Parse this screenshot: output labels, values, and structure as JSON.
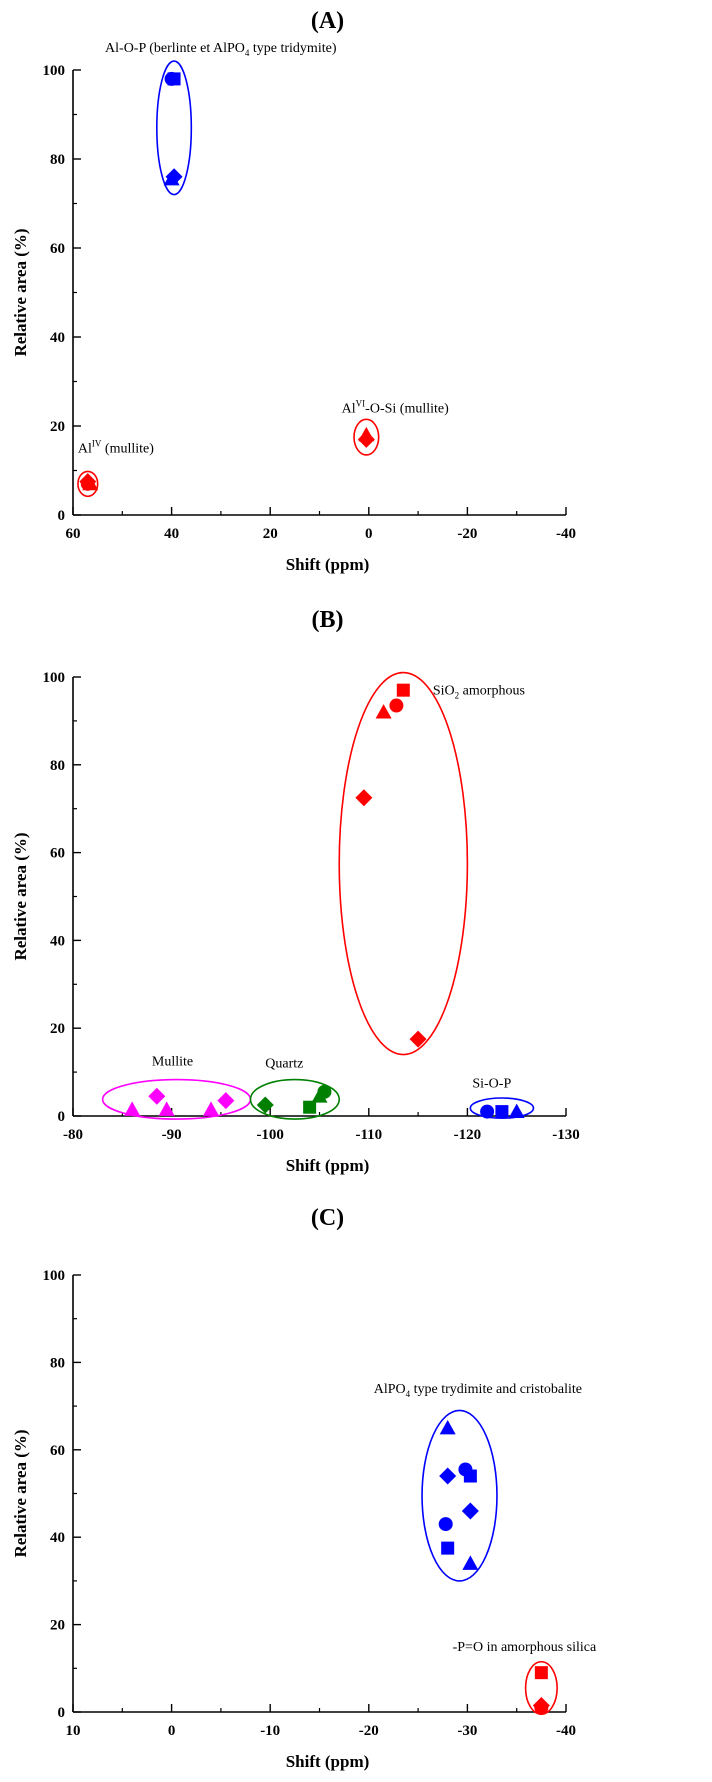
{
  "chart_data": [
    {
      "type": "scatter",
      "title": "(A)",
      "xlabel": "Shift (ppm)",
      "ylabel": "Relative area (%)",
      "xlim": [
        60,
        -40
      ],
      "ylim": [
        0,
        100
      ],
      "xticks": [
        "60",
        "40",
        "20",
        "0",
        "-20",
        "-40"
      ],
      "yticks": [
        "0",
        "20",
        "40",
        "60",
        "80",
        "100"
      ],
      "points": [
        {
          "x": 39.5,
          "y": 98,
          "shape": "square",
          "color": "#0000ff"
        },
        {
          "x": 40.0,
          "y": 98,
          "shape": "circle",
          "color": "#0000ff"
        },
        {
          "x": 39.5,
          "y": 76,
          "shape": "diamond",
          "color": "#0000ff"
        },
        {
          "x": 40.0,
          "y": 75.5,
          "shape": "triangle",
          "color": "#0000ff"
        },
        {
          "x": 57.0,
          "y": 7.5,
          "shape": "diamond",
          "color": "#ff0000"
        },
        {
          "x": 56.5,
          "y": 7,
          "shape": "triangle",
          "color": "#ff0000"
        },
        {
          "x": 57.0,
          "y": 7,
          "shape": "circle",
          "color": "#ff0000"
        },
        {
          "x": 0.5,
          "y": 17,
          "shape": "diamond",
          "color": "#ff0000"
        },
        {
          "x": 0.5,
          "y": 18,
          "shape": "triangle",
          "color": "#ff0000"
        }
      ],
      "ellipses": [
        {
          "cx": 39.5,
          "cy": 87,
          "rx": 3.5,
          "ry": 15,
          "color": "#0000ff"
        },
        {
          "cx": 57.0,
          "cy": 7,
          "rx": 2.0,
          "ry": 2.8,
          "color": "#ff0000"
        },
        {
          "cx": 0.5,
          "cy": 17.5,
          "rx": 2.5,
          "ry": 4,
          "color": "#ff0000"
        }
      ],
      "annotations": [
        {
          "text": "Al-O-P (berlinte et AlPO",
          "sub": "4",
          "text2": " type tridymite)",
          "x": 53.5,
          "y": 104
        },
        {
          "text": "Al",
          "sup": "IV",
          "text2": " (mullite)",
          "x": 59,
          "y": 14
        },
        {
          "text": "Al",
          "sup": "VI",
          "text2": "-O-Si (mullite)",
          "x": 5.5,
          "y": 23
        }
      ]
    },
    {
      "type": "scatter",
      "title": "(B)",
      "xlabel": "Shift (ppm)",
      "ylabel": "Relative area (%)",
      "xlim": [
        -80,
        -130
      ],
      "ylim": [
        0,
        100
      ],
      "xticks": [
        "-80",
        "-90",
        "-100",
        "-110",
        "-120",
        "-130"
      ],
      "yticks": [
        "0",
        "20",
        "40",
        "60",
        "80",
        "100"
      ],
      "points": [
        {
          "x": -113.5,
          "y": 97,
          "shape": "square",
          "color": "#ff0000"
        },
        {
          "x": -112.8,
          "y": 93.5,
          "shape": "circle",
          "color": "#ff0000"
        },
        {
          "x": -111.5,
          "y": 92,
          "shape": "triangle",
          "color": "#ff0000"
        },
        {
          "x": -109.5,
          "y": 72.5,
          "shape": "diamond",
          "color": "#ff0000"
        },
        {
          "x": -115.0,
          "y": 17.5,
          "shape": "diamond",
          "color": "#ff0000"
        },
        {
          "x": -88.5,
          "y": 4.5,
          "shape": "diamond",
          "color": "#ff00ff"
        },
        {
          "x": -95.5,
          "y": 3.5,
          "shape": "diamond",
          "color": "#ff00ff"
        },
        {
          "x": -86.0,
          "y": 1.5,
          "shape": "triangle",
          "color": "#ff00ff"
        },
        {
          "x": -89.5,
          "y": 1.5,
          "shape": "triangle",
          "color": "#ff00ff"
        },
        {
          "x": -94.0,
          "y": 1.5,
          "shape": "triangle",
          "color": "#ff00ff"
        },
        {
          "x": -99.5,
          "y": 2.5,
          "shape": "diamond",
          "color": "#008000"
        },
        {
          "x": -105.5,
          "y": 5.5,
          "shape": "circle",
          "color": "#008000"
        },
        {
          "x": -105.0,
          "y": 4.5,
          "shape": "triangle",
          "color": "#008000"
        },
        {
          "x": -104.0,
          "y": 2,
          "shape": "square",
          "color": "#008000"
        },
        {
          "x": -122.0,
          "y": 1,
          "shape": "circle",
          "color": "#0000ff"
        },
        {
          "x": -123.5,
          "y": 1,
          "shape": "square",
          "color": "#0000ff"
        },
        {
          "x": -125.0,
          "y": 1,
          "shape": "triangle",
          "color": "#0000ff"
        }
      ],
      "ellipses": [
        {
          "cx": -113.5,
          "cy": 57.5,
          "rx": 6.5,
          "ry": 43.5,
          "color": "#ff0000"
        },
        {
          "cx": -90.5,
          "cy": 3.8,
          "rx": 7.5,
          "ry": 4.5,
          "color": "#ff00ff"
        },
        {
          "cx": -102.5,
          "cy": 3.8,
          "rx": 4.5,
          "ry": 4.5,
          "color": "#008000"
        },
        {
          "cx": -123.5,
          "cy": 1.8,
          "rx": 3.2,
          "ry": 2.3,
          "color": "#0000ff"
        }
      ],
      "annotations": [
        {
          "text": "SiO",
          "sub": "2",
          "text2": " amorphous",
          "x": -116.5,
          "y": 96
        },
        {
          "text": "Mullite",
          "x": -88.0,
          "y": 11.5
        },
        {
          "text": "Quartz",
          "x": -99.5,
          "y": 11
        },
        {
          "text": "Si-O-P",
          "x": -120.5,
          "y": 6.5
        }
      ]
    },
    {
      "type": "scatter",
      "title": "(C)",
      "xlabel": "Shift (ppm)",
      "ylabel": "Relative area (%)",
      "xlim": [
        10,
        -40
      ],
      "ylim": [
        0,
        100
      ],
      "xticks": [
        "10",
        "0",
        "-10",
        "-20",
        "-30",
        "-40"
      ],
      "yticks": [
        "0",
        "20",
        "40",
        "60",
        "80",
        "100"
      ],
      "points": [
        {
          "x": -28.0,
          "y": 65,
          "shape": "triangle",
          "color": "#0000ff"
        },
        {
          "x": -29.8,
          "y": 55.5,
          "shape": "circle",
          "color": "#0000ff"
        },
        {
          "x": -30.3,
          "y": 54,
          "shape": "square",
          "color": "#0000ff"
        },
        {
          "x": -28.0,
          "y": 54,
          "shape": "diamond",
          "color": "#0000ff"
        },
        {
          "x": -30.3,
          "y": 46,
          "shape": "diamond",
          "color": "#0000ff"
        },
        {
          "x": -27.8,
          "y": 43,
          "shape": "circle",
          "color": "#0000ff"
        },
        {
          "x": -28.0,
          "y": 37.5,
          "shape": "square",
          "color": "#0000ff"
        },
        {
          "x": -30.3,
          "y": 34,
          "shape": "triangle",
          "color": "#0000ff"
        },
        {
          "x": -37.5,
          "y": 9,
          "shape": "square",
          "color": "#ff0000"
        },
        {
          "x": -37.5,
          "y": 1.5,
          "shape": "diamond",
          "color": "#ff0000"
        },
        {
          "x": -37.5,
          "y": 1,
          "shape": "circle",
          "color": "#ff0000"
        }
      ],
      "ellipses": [
        {
          "cx": -29.2,
          "cy": 49.5,
          "rx": 3.8,
          "ry": 19.5,
          "color": "#0000ff"
        },
        {
          "cx": -37.5,
          "cy": 5.5,
          "rx": 1.6,
          "ry": 6,
          "color": "#ff0000"
        }
      ],
      "annotations": [
        {
          "text": "AlPO",
          "sub": "4",
          "text2": " type trydimite and cristobalite",
          "x": -20.5,
          "y": 73
        },
        {
          "text": "-P=O in amorphous silica",
          "x": -28.5,
          "y": 14
        }
      ]
    }
  ]
}
